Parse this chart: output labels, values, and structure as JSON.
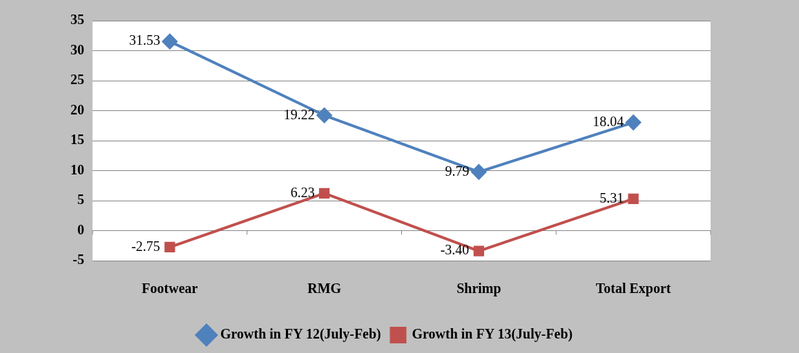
{
  "chart_data": {
    "type": "line",
    "categories": [
      "Footwear",
      "RMG",
      "Shrimp",
      "Total Export"
    ],
    "series": [
      {
        "name": "Growth in FY 12(July-Feb)",
        "color": "#4f81bd",
        "marker": "diamond",
        "values": [
          31.53,
          19.22,
          9.79,
          18.04
        ],
        "value_labels": [
          "31.53",
          "19.22",
          "9.79",
          "18.04"
        ]
      },
      {
        "name": "Growth in FY 13(July-Feb)",
        "color": "#c0504d",
        "marker": "square",
        "values": [
          -2.75,
          6.23,
          -3.4,
          5.31
        ],
        "value_labels": [
          "-2.75",
          "6.23",
          "-3.40",
          "5.31"
        ]
      }
    ],
    "ylim": [
      -5,
      35
    ],
    "yticks": [
      -5,
      0,
      5,
      10,
      15,
      20,
      25,
      30,
      35
    ],
    "grid": "y",
    "legend": "bottom"
  }
}
